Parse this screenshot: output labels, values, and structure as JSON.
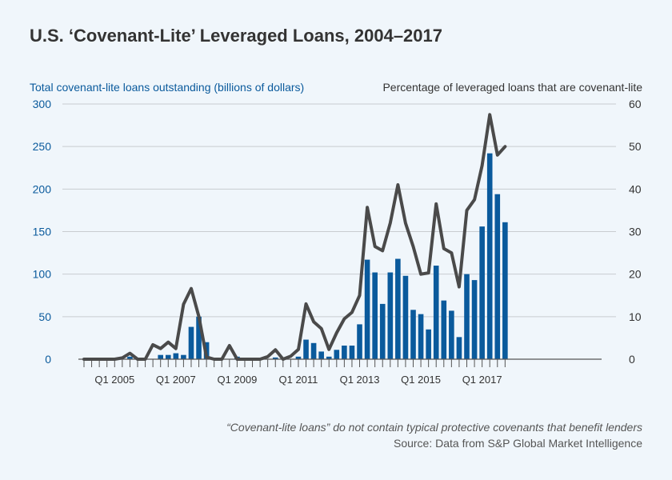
{
  "title": "U.S. ‘Covenant-Lite’ Leveraged Loans, 2004–2017",
  "left_axis_label": "Total covenant-lite loans outstanding (billions of dollars)",
  "right_axis_label": "Percentage of leveraged loans that are covenant-lite",
  "note": "“Covenant-lite loans” do not contain typical protective covenants that benefit lenders",
  "source": "Source: Data from S&P Global Market Intelligence",
  "colors": {
    "bars": "#0a5a9c",
    "line": "#4a4a4a",
    "grid": "#c8ccd0"
  },
  "chart_data": {
    "type": "bar",
    "categories_note": "quarterly, Q1 2004 through Q4 2017",
    "x_tick_labels": [
      "Q1 2005",
      "Q1 2007",
      "Q1 2009",
      "Q1 2011",
      "Q1 2013",
      "Q1 2015",
      "Q1 2017"
    ],
    "left_ylim": [
      0,
      300
    ],
    "left_yticks": [
      0,
      50,
      100,
      150,
      200,
      250,
      300
    ],
    "right_ylim": [
      0,
      60
    ],
    "right_yticks": [
      0,
      10,
      20,
      30,
      40,
      50,
      60
    ],
    "grid": true,
    "series": [
      {
        "name": "Total covenant-lite loans outstanding (billions of dollars)",
        "type": "bar",
        "axis": "left",
        "values": [
          0,
          0,
          0,
          0,
          0,
          0,
          3,
          0,
          0,
          0,
          5,
          5,
          7,
          5,
          38,
          50,
          20,
          0,
          0,
          0,
          3,
          0,
          0,
          0,
          0,
          2,
          0,
          0,
          3,
          23,
          19,
          9,
          3,
          11,
          16,
          16,
          41,
          117,
          102,
          65,
          102,
          118,
          98,
          58,
          53,
          35,
          110,
          69,
          57,
          26,
          100,
          93,
          156,
          242,
          194,
          161
        ]
      },
      {
        "name": "Percentage of leveraged loans that are covenant-lite",
        "type": "line",
        "axis": "right",
        "values": [
          0,
          0,
          0,
          0,
          0,
          0.3,
          1.4,
          0,
          0,
          3.4,
          2.5,
          4,
          2.5,
          12.9,
          16.6,
          10,
          0.5,
          0,
          0,
          3.2,
          0,
          0,
          0,
          0,
          0.6,
          2.2,
          0,
          0.7,
          2.3,
          13,
          8.8,
          7.2,
          2.3,
          6.2,
          9.5,
          11,
          15,
          35.7,
          26.5,
          25.5,
          32,
          41,
          32,
          26.5,
          20,
          20.3,
          36.5,
          26,
          25,
          17,
          35,
          37.5,
          45.5,
          57.5,
          48,
          50
        ]
      }
    ]
  }
}
